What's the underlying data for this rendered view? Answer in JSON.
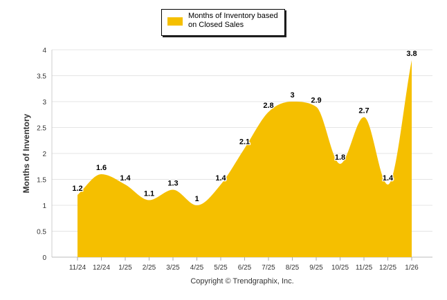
{
  "chart_data": {
    "type": "area",
    "title": "",
    "xlabel": "",
    "ylabel": "Months of Inventory",
    "ylim": [
      0,
      4
    ],
    "yticks": [
      "0",
      "0.5",
      "1",
      "1.5",
      "2",
      "2.5",
      "3",
      "3.5",
      "4"
    ],
    "ytick_values": [
      0,
      0.5,
      1,
      1.5,
      2,
      2.5,
      3,
      3.5,
      4
    ],
    "categories": [
      "11/24",
      "12/24",
      "1/25",
      "2/25",
      "3/25",
      "4/25",
      "5/25",
      "6/25",
      "7/25",
      "8/25",
      "9/25",
      "10/25",
      "11/25",
      "12/25",
      "1/26"
    ],
    "series": [
      {
        "name": "Months of Inventory based on Closed Sales",
        "values": [
          1.2,
          1.6,
          1.4,
          1.1,
          1.3,
          1.0,
          1.4,
          2.1,
          2.8,
          3.0,
          2.9,
          1.8,
          2.7,
          1.4,
          3.8
        ],
        "labels": [
          "1.2",
          "1.6",
          "1.4",
          "1.1",
          "1.3",
          "1",
          "1.4",
          "2.1",
          "2.8",
          "3",
          "2.9",
          "1.8",
          "2.7",
          "1.4",
          "3.8"
        ],
        "color": "#F5BF00"
      }
    ],
    "legend": {
      "label": "Months of Inventory based on Closed Sales",
      "position": "top-center"
    },
    "grid": true
  },
  "footer": {
    "copyright": "Copyright © Trendgraphix, Inc."
  }
}
